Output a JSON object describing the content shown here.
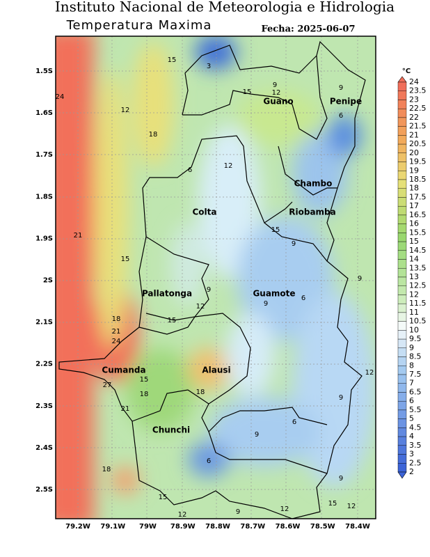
{
  "title": "Instituto Nacional de Meteorologia e Hidrologia",
  "subtitle": "Temperatura Maxima",
  "date": "Fecha: 2025-06-07",
  "lat_labels": [
    "1.5S",
    "1.6S",
    "1.7S",
    "1.8S",
    "1.9S",
    "2S",
    "2.1S",
    "2.2S",
    "2.3S",
    "2.4S",
    "2.5S"
  ],
  "lon_labels": [
    "79.2W",
    "79.1W",
    "79W",
    "78.9W",
    "78.8W",
    "78.7W",
    "78.6W",
    "78.5W",
    "78.4W"
  ],
  "regions": [
    "Guano",
    "Penipe",
    "Chambo",
    "Colta",
    "Riobamba",
    "Pallatonga",
    "Guamote",
    "Cumanda",
    "Alausi",
    "Chunchi"
  ],
  "contour_labels": [
    "15",
    "3",
    "9",
    "12",
    "15",
    "9",
    "24",
    "12",
    "6",
    "18",
    "12",
    "6",
    "15",
    "9",
    "21",
    "15",
    "9",
    "9",
    "6",
    "9",
    "12",
    "18",
    "15",
    "21",
    "24",
    "12",
    "27",
    "15",
    "18",
    "18",
    "21",
    "9",
    "6",
    "9",
    "6",
    "18",
    "9",
    "15",
    "15",
    "12",
    "12",
    "9",
    "12"
  ],
  "colorbar": {
    "unit": "°C",
    "labels": [
      "24",
      "23.5",
      "23",
      "22.5",
      "22",
      "21.5",
      "21",
      "20.5",
      "20",
      "19.5",
      "19",
      "18.5",
      "18",
      "17.5",
      "17",
      "16.5",
      "16",
      "15.5",
      "15",
      "14.5",
      "14",
      "13.5",
      "13",
      "12.5",
      "12",
      "11.5",
      "11",
      "10.5",
      "10",
      "9.5",
      "9",
      "8.5",
      "8",
      "7.5",
      "7",
      "6.5",
      "6",
      "5.5",
      "5",
      "4.5",
      "4",
      "3.5",
      "3",
      "2.5",
      "2"
    ]
  }
}
